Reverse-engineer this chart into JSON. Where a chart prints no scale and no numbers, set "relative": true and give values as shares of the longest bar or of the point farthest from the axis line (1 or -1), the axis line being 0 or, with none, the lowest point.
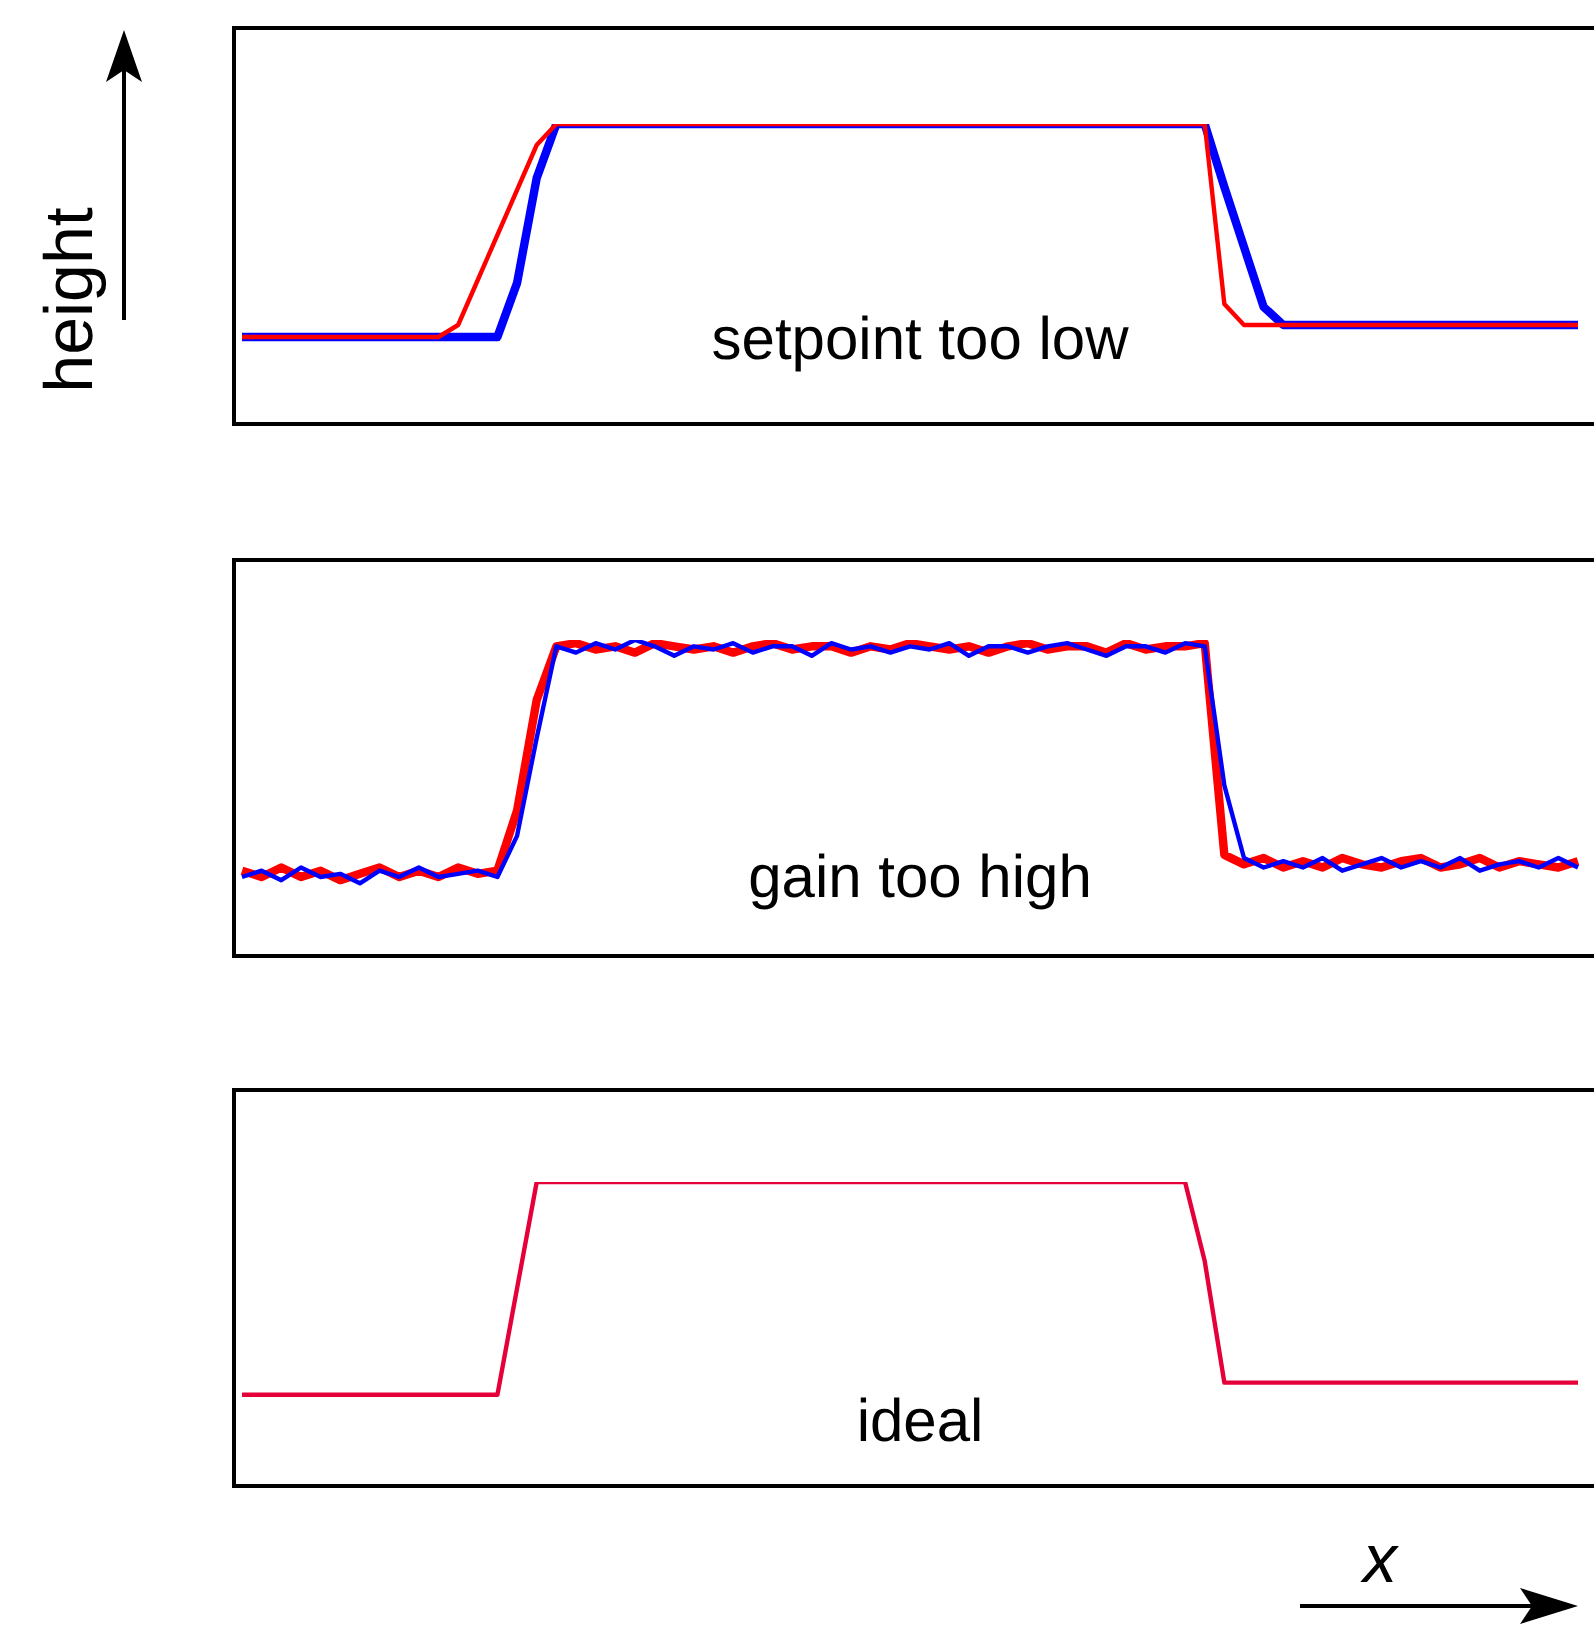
{
  "chart_data": [
    {
      "type": "line",
      "ylabel": "height",
      "relative": true,
      "tick_labels": false,
      "grid": false,
      "legend": false,
      "marker": "none",
      "line_style": "solid",
      "annotations": [
        "setpoint too low"
      ],
      "categories": [
        null,
        null,
        null,
        null,
        null,
        null,
        null,
        null,
        null,
        null,
        null,
        null,
        null,
        null,
        null,
        null,
        null,
        null,
        null,
        null,
        null,
        null,
        null,
        null,
        null,
        null,
        null,
        null,
        null,
        null,
        null,
        null,
        null,
        null,
        null,
        null,
        null,
        null,
        null,
        null,
        null,
        null,
        null,
        null,
        null,
        null,
        null,
        null,
        null,
        null,
        null,
        null,
        null,
        null,
        null,
        null,
        null,
        null,
        null,
        null,
        null,
        null,
        null,
        null,
        null,
        null,
        null,
        null,
        null
      ],
      "series": [
        {
          "color": "#0000ff",
          "values": [
            0.29,
            0.29,
            0.29,
            0.29,
            0.29,
            0.29,
            0.29,
            0.29,
            0.29,
            0.29,
            0.29,
            0.29,
            0.29,
            0.29,
            0.47,
            0.82,
            1,
            1,
            1,
            1,
            1,
            1,
            1,
            1,
            1,
            1,
            1,
            1,
            1,
            1,
            1,
            1,
            1,
            1,
            1,
            1,
            1,
            1,
            1,
            1,
            1,
            1,
            1,
            1,
            1,
            1,
            1,
            1,
            1,
            1,
            0.79,
            0.59,
            0.39,
            0.33,
            0.33,
            0.33,
            0.33,
            0.33,
            0.33,
            0.33,
            0.33,
            0.33,
            0.33,
            0.33,
            0.33,
            0.33,
            0.33,
            0.33,
            0.33
          ]
        },
        {
          "color": "#ff0000",
          "values": [
            0.29,
            0.29,
            0.29,
            0.29,
            0.29,
            0.29,
            0.29,
            0.29,
            0.29,
            0.29,
            0.29,
            0.33,
            0.48,
            0.63,
            0.78,
            0.93,
            1,
            1,
            1,
            1,
            1,
            1,
            1,
            1,
            1,
            1,
            1,
            1,
            1,
            1,
            1,
            1,
            1,
            1,
            1,
            1,
            1,
            1,
            1,
            1,
            1,
            1,
            1,
            1,
            1,
            1,
            1,
            1,
            1,
            1,
            0.4,
            0.33,
            0.33,
            0.33,
            0.33,
            0.33,
            0.33,
            0.33,
            0.33,
            0.33,
            0.33,
            0.33,
            0.33,
            0.33,
            0.33,
            0.33,
            0.33,
            0.33,
            0.33
          ]
        }
      ]
    },
    {
      "type": "line",
      "relative": true,
      "tick_labels": false,
      "grid": false,
      "legend": false,
      "marker": "none",
      "line_style": "solid",
      "annotations": [
        "gain too high"
      ],
      "categories": [
        null,
        null,
        null,
        null,
        null,
        null,
        null,
        null,
        null,
        null,
        null,
        null,
        null,
        null,
        null,
        null,
        null,
        null,
        null,
        null,
        null,
        null,
        null,
        null,
        null,
        null,
        null,
        null,
        null,
        null,
        null,
        null,
        null,
        null,
        null,
        null,
        null,
        null,
        null,
        null,
        null,
        null,
        null,
        null,
        null,
        null,
        null,
        null,
        null,
        null,
        null,
        null,
        null,
        null,
        null,
        null,
        null,
        null,
        null,
        null,
        null,
        null,
        null,
        null,
        null,
        null,
        null,
        null,
        null
      ],
      "series": [
        {
          "color": "#ff0000",
          "values": [
            0.27,
            0.25,
            0.28,
            0.25,
            0.27,
            0.24,
            0.26,
            0.28,
            0.25,
            0.27,
            0.25,
            0.28,
            0.26,
            0.27,
            0.46,
            0.81,
            0.98,
            0.99,
            0.97,
            0.98,
            0.96,
            0.99,
            0.98,
            0.97,
            0.98,
            0.96,
            0.98,
            0.99,
            0.97,
            0.98,
            0.98,
            0.96,
            0.98,
            0.97,
            0.99,
            0.98,
            0.97,
            0.98,
            0.96,
            0.98,
            0.99,
            0.97,
            0.98,
            0.98,
            0.96,
            0.99,
            0.97,
            0.98,
            0.98,
            0.99,
            0.32,
            0.29,
            0.31,
            0.28,
            0.3,
            0.28,
            0.31,
            0.29,
            0.28,
            0.3,
            0.31,
            0.28,
            0.29,
            0.31,
            0.28,
            0.3,
            0.29,
            0.28,
            0.3
          ]
        },
        {
          "color": "#0000ff",
          "values": [
            0.25,
            0.27,
            0.24,
            0.28,
            0.25,
            0.26,
            0.23,
            0.27,
            0.25,
            0.28,
            0.25,
            0.26,
            0.27,
            0.25,
            0.38,
            0.69,
            0.98,
            0.96,
            0.99,
            0.97,
            1,
            0.98,
            0.95,
            0.98,
            0.97,
            0.99,
            0.96,
            0.98,
            0.98,
            0.95,
            0.99,
            0.97,
            0.98,
            0.96,
            0.98,
            0.97,
            0.99,
            0.95,
            0.98,
            0.98,
            0.96,
            0.98,
            0.99,
            0.97,
            0.95,
            0.98,
            0.98,
            0.96,
            0.99,
            0.98,
            0.54,
            0.31,
            0.28,
            0.3,
            0.28,
            0.31,
            0.27,
            0.29,
            0.31,
            0.28,
            0.3,
            0.28,
            0.31,
            0.27,
            0.29,
            0.3,
            0.28,
            0.31,
            0.28
          ]
        }
      ]
    },
    {
      "type": "line",
      "xlabel": "x",
      "relative": true,
      "tick_labels": false,
      "grid": false,
      "legend": false,
      "marker": "none",
      "line_style": "solid",
      "annotations": [
        "ideal"
      ],
      "categories": [
        null,
        null,
        null,
        null,
        null,
        null,
        null,
        null,
        null,
        null,
        null,
        null,
        null,
        null,
        null,
        null,
        null,
        null,
        null,
        null,
        null,
        null,
        null,
        null,
        null,
        null,
        null,
        null,
        null,
        null,
        null,
        null,
        null,
        null,
        null,
        null,
        null,
        null,
        null,
        null,
        null,
        null,
        null,
        null,
        null,
        null,
        null,
        null,
        null,
        null,
        null,
        null,
        null,
        null,
        null,
        null,
        null,
        null,
        null,
        null,
        null,
        null,
        null,
        null,
        null,
        null,
        null,
        null,
        null
      ],
      "series": [
        {
          "color": "#e6003a",
          "values": [
            0.3,
            0.3,
            0.3,
            0.3,
            0.3,
            0.3,
            0.3,
            0.3,
            0.3,
            0.3,
            0.3,
            0.3,
            0.3,
            0.3,
            0.65,
            1,
            1,
            1,
            1,
            1,
            1,
            1,
            1,
            1,
            1,
            1,
            1,
            1,
            1,
            1,
            1,
            1,
            1,
            1,
            1,
            1,
            1,
            1,
            1,
            1,
            1,
            1,
            1,
            1,
            1,
            1,
            1,
            1,
            1,
            0.74,
            0.34,
            0.34,
            0.34,
            0.34,
            0.34,
            0.34,
            0.34,
            0.34,
            0.34,
            0.34,
            0.34,
            0.34,
            0.34,
            0.34,
            0.34,
            0.34,
            0.34,
            0.34,
            0.34
          ]
        }
      ]
    }
  ]
}
